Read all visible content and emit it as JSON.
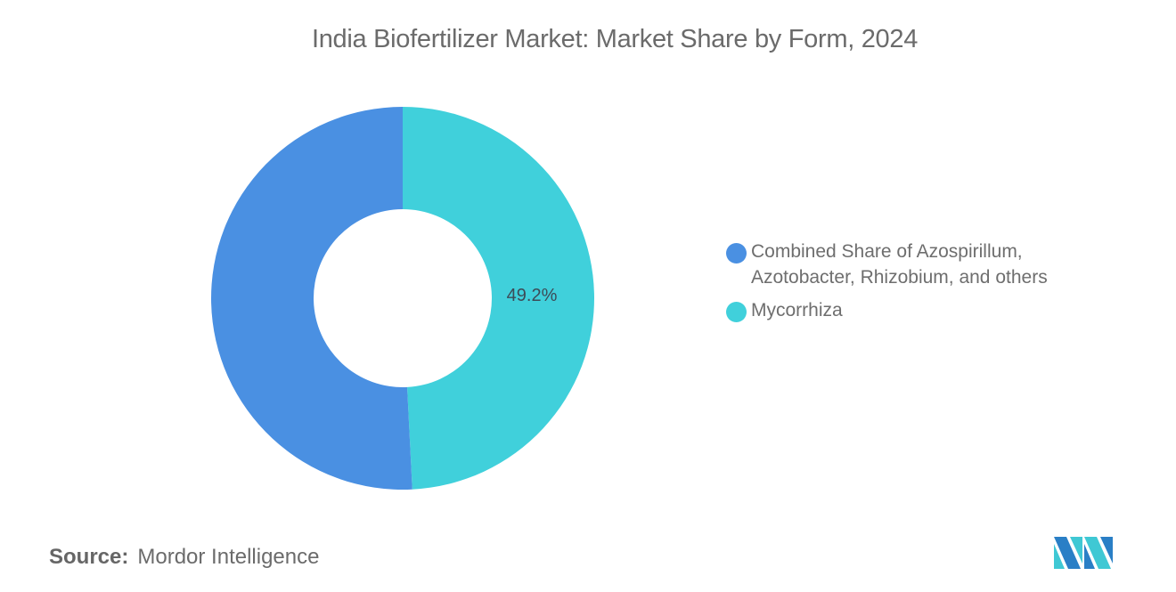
{
  "title": "India Biofertilizer Market: Market Share by Form, 2024",
  "legend": {
    "items": [
      {
        "label_line1": "Combined Share of Azospirillum,",
        "label_line2": "Azotobacter, Rhizobium, and others",
        "color": "#4A90E2"
      },
      {
        "label_line1": "Mycorrhiza",
        "color": "#40D0DB"
      }
    ]
  },
  "data_label": "49.2%",
  "source": {
    "key": "Source:",
    "value": "Mordor Intelligence"
  },
  "logo": {
    "name": "mordor-intelligence-logo",
    "colors": [
      "#1F6FB5",
      "#3FC8D4"
    ]
  },
  "chart_data": {
    "type": "pie",
    "subtype": "donut",
    "title": "India Biofertilizer Market: Market Share by Form, 2024",
    "categories": [
      "Combined Share of Azospirillum, Azotobacter, Rhizobium, and others",
      "Mycorrhiza"
    ],
    "values": [
      50.8,
      49.2
    ],
    "colors": [
      "#4A90E2",
      "#40D0DB"
    ],
    "data_labels": [
      "",
      "49.2%"
    ],
    "unit": "%",
    "legend_position": "right",
    "source": "Mordor Intelligence"
  }
}
